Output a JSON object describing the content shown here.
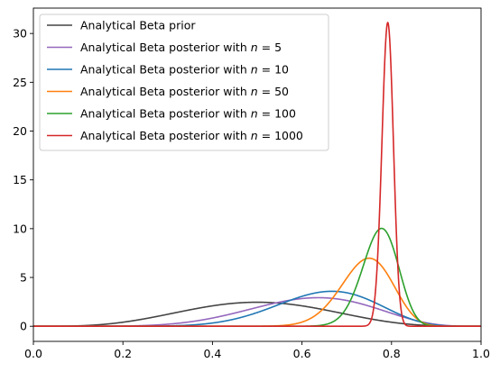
{
  "chart_data": {
    "type": "line",
    "title": "",
    "xlabel": "",
    "ylabel": "",
    "xlim": [
      0.0,
      1.0
    ],
    "ylim": [
      -1.55,
      32.6
    ],
    "xticks": [
      0.0,
      0.2,
      0.4,
      0.6,
      0.8,
      1.0
    ],
    "xtick_labels": [
      "0.0",
      "0.2",
      "0.4",
      "0.6",
      "0.8",
      "1.0"
    ],
    "yticks": [
      0,
      5,
      10,
      15,
      20,
      25,
      30
    ],
    "ytick_labels": [
      "0",
      "5",
      "10",
      "15",
      "20",
      "25",
      "30"
    ],
    "grid": false,
    "legend_position": "upper-left",
    "series": [
      {
        "name_prefix": "Analytical Beta prior",
        "name_suffix": "",
        "color": "#444444",
        "alpha": 5,
        "beta": 5
      },
      {
        "name_prefix": "Analytical Beta posterior with ",
        "name_suffix": "= 5",
        "color": "#9467bd",
        "alpha": 8,
        "beta": 5
      },
      {
        "name_prefix": "Analytical Beta posterior with ",
        "name_suffix": "= 10",
        "color": "#1f77b4",
        "alpha": 12,
        "beta": 6.5
      },
      {
        "name_prefix": "Analytical Beta posterior with ",
        "name_suffix": "= 50",
        "color": "#ff7f0e",
        "alpha": 43,
        "beta": 15
      },
      {
        "name_prefix": "Analytical Beta posterior with ",
        "name_suffix": "= 100",
        "color": "#2ca02c",
        "alpha": 85,
        "beta": 25
      },
      {
        "name_prefix": "Analytical Beta posterior with ",
        "name_suffix": "= 1000",
        "color": "#d62728",
        "alpha": 795,
        "beta": 210
      }
    ],
    "legend_var": "n"
  }
}
